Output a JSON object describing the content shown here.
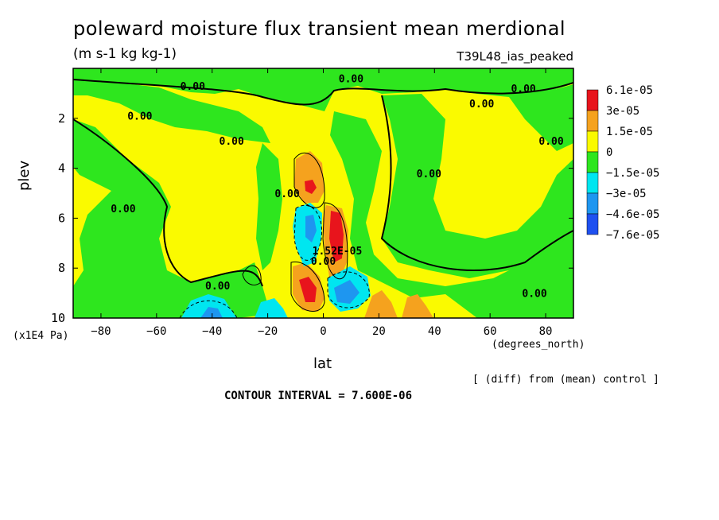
{
  "header": {
    "title": "poleward moisture flux transient mean merdional",
    "units": "(m s-1 kg kg-1)",
    "run_label": "T39L48_ias_peaked"
  },
  "footer": {
    "x_units_left": "(x1E4 Pa)",
    "x_units_right": "(degrees_north)",
    "diff_note": "[ (diff) from (mean) control ]",
    "contour_interval": "CONTOUR INTERVAL = 7.600E-06"
  },
  "chart_data": {
    "type": "contour",
    "title": "poleward moisture flux transient mean merdional",
    "xlabel": "lat",
    "ylabel": "plev",
    "xlim": [
      -90,
      90
    ],
    "ylim": [
      10,
      0
    ],
    "x_ticks": [
      -80,
      -60,
      -40,
      -20,
      0,
      20,
      40,
      60,
      80
    ],
    "y_ticks": [
      2,
      4,
      6,
      8,
      10
    ],
    "legend": {
      "placement": "right",
      "entries": [
        {
          "label": "6.1e-05",
          "color": "#e8141c"
        },
        {
          "label": "3e-05",
          "color": "#f5a21e"
        },
        {
          "label": "1.5e-05",
          "color": "#fafa00"
        },
        {
          "label": "0",
          "color": "#2ee61e"
        },
        {
          "label": "−1.5e-05",
          "color": "#00e6f0"
        },
        {
          "label": "−3e-05",
          "color": "#1e96f0"
        },
        {
          "label": "−4.6e-05",
          "color": "#1e50f0"
        },
        {
          "label": "−7.6e-05",
          "color": ""
        }
      ]
    },
    "contour_labels": [
      {
        "text": "0.00",
        "lat": -47,
        "plev": 0.7
      },
      {
        "text": "0.00",
        "lat": 10,
        "plev": 0.4
      },
      {
        "text": "0.00",
        "lat": 72,
        "plev": 0.8
      },
      {
        "text": "0.00",
        "lat": -66,
        "plev": 1.9
      },
      {
        "text": "0.00",
        "lat": -33,
        "plev": 2.9
      },
      {
        "text": "0.00",
        "lat": 57,
        "plev": 1.4
      },
      {
        "text": "0.00",
        "lat": 82,
        "plev": 2.9
      },
      {
        "text": "0.00",
        "lat": 38,
        "plev": 4.2
      },
      {
        "text": "0.00",
        "lat": -13,
        "plev": 5.0
      },
      {
        "text": "0.00",
        "lat": -72,
        "plev": 5.6
      },
      {
        "text": "0.00",
        "lat": -38,
        "plev": 8.7
      },
      {
        "text": "0.00",
        "lat": 76,
        "plev": 9.0
      },
      {
        "text": "0.00",
        "lat": 0,
        "plev": 7.7
      },
      {
        "text": "1.52E-05",
        "lat": 5,
        "plev": 7.3
      }
    ],
    "colors": {
      "strong_positive": "#e8141c",
      "positive": "#f5a21e",
      "weak_positive": "#fafa00",
      "weak_negative": "#2ee61e",
      "negative": "#00e6f0",
      "strong_negative": "#1e96f0"
    }
  }
}
